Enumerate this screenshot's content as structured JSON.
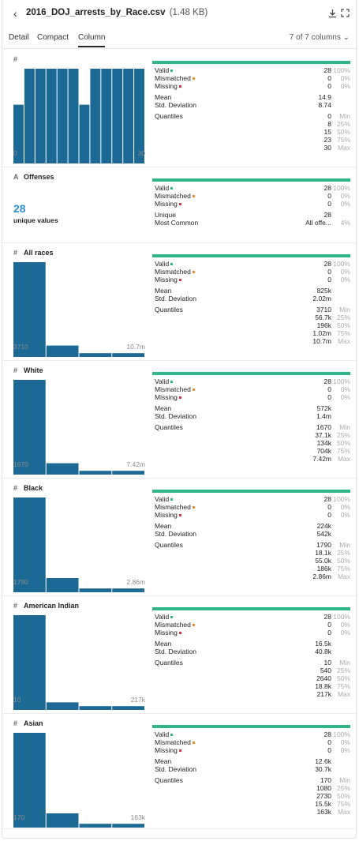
{
  "header": {
    "back_icon": "chevron-left-icon",
    "file_name": "2016_DOJ_arrests_by_Race.csv",
    "file_size": "(1.48 KB)",
    "download_icon": "download-icon",
    "expand_icon": "expand-icon"
  },
  "tabs": [
    {
      "label": "Detail",
      "active": false
    },
    {
      "label": "Compact",
      "active": false
    },
    {
      "label": "Column",
      "active": true
    }
  ],
  "column_count": "7 of 7 columns ⌄",
  "colors": {
    "valid": "#2fb588",
    "mismatched": "#ef8a2f",
    "missing": "#d63a48",
    "histogram": "#1d6996",
    "unique": "#2b8fd6"
  },
  "columns": [
    {
      "name": "",
      "type_icon": "#",
      "kind": "numeric",
      "histogram": [
        0.62,
        1,
        1,
        1,
        1,
        1,
        0.62,
        1,
        1,
        1,
        1,
        1
      ],
      "axis_min": "0",
      "axis_max": "30",
      "summary": [
        {
          "label": "Valid",
          "value": "28",
          "pct": "100%"
        },
        {
          "label": "Mismatched",
          "value": "0",
          "pct": "0%"
        },
        {
          "label": "Missing",
          "value": "0",
          "pct": "0%"
        }
      ],
      "mean_label": "Mean",
      "mean": "14.9",
      "std_label": "Std. Deviation",
      "std": "8.74",
      "quantiles_label": "Quantiles",
      "quantiles": [
        {
          "value": "0",
          "label": "Min"
        },
        {
          "value": "8",
          "label": "25%"
        },
        {
          "value": "15",
          "label": "50%"
        },
        {
          "value": "23",
          "label": "75%"
        },
        {
          "value": "30",
          "label": "Max"
        }
      ]
    },
    {
      "name": "Offenses",
      "type_icon": "A",
      "kind": "text",
      "unique_count": "28",
      "unique_label": "unique values",
      "summary": [
        {
          "label": "Valid",
          "value": "28",
          "pct": "100%"
        },
        {
          "label": "Mismatched",
          "value": "0",
          "pct": "0%"
        },
        {
          "label": "Missing",
          "value": "0",
          "pct": "0%"
        }
      ],
      "unique_row_label": "Unique",
      "unique_value": "28",
      "common_label": "Most Common",
      "common_value": "All offe...",
      "common_pct": "4%"
    },
    {
      "name": "All races",
      "type_icon": "#",
      "kind": "numeric",
      "histogram": [
        1,
        0.12,
        0.04,
        0.04
      ],
      "axis_min": "3710",
      "axis_max": "10.7m",
      "summary": [
        {
          "label": "Valid",
          "value": "28",
          "pct": "100%"
        },
        {
          "label": "Mismatched",
          "value": "0",
          "pct": "0%"
        },
        {
          "label": "Missing",
          "value": "0",
          "pct": "0%"
        }
      ],
      "mean_label": "Mean",
      "mean": "825k",
      "std_label": "Std. Deviation",
      "std": "2.02m",
      "quantiles_label": "Quantiles",
      "quantiles": [
        {
          "value": "3710",
          "label": "Min"
        },
        {
          "value": "56.7k",
          "label": "25%"
        },
        {
          "value": "196k",
          "label": "50%"
        },
        {
          "value": "1.02m",
          "label": "75%"
        },
        {
          "value": "10.7m",
          "label": "Max"
        }
      ]
    },
    {
      "name": "White",
      "type_icon": "#",
      "kind": "numeric",
      "histogram": [
        1,
        0.12,
        0.04,
        0.04
      ],
      "axis_min": "1670",
      "axis_max": "7.42m",
      "summary": [
        {
          "label": "Valid",
          "value": "28",
          "pct": "100%"
        },
        {
          "label": "Mismatched",
          "value": "0",
          "pct": "0%"
        },
        {
          "label": "Missing",
          "value": "0",
          "pct": "0%"
        }
      ],
      "mean_label": "Mean",
      "mean": "572k",
      "std_label": "Std. Deviation",
      "std": "1.4m",
      "quantiles_label": "Quantiles",
      "quantiles": [
        {
          "value": "1670",
          "label": "Min"
        },
        {
          "value": "37.1k",
          "label": "25%"
        },
        {
          "value": "134k",
          "label": "50%"
        },
        {
          "value": "704k",
          "label": "75%"
        },
        {
          "value": "7.42m",
          "label": "Max"
        }
      ]
    },
    {
      "name": "Black",
      "type_icon": "#",
      "kind": "numeric",
      "histogram": [
        1,
        0.15,
        0.04,
        0.04
      ],
      "axis_min": "1790",
      "axis_max": "2.86m",
      "summary": [
        {
          "label": "Valid",
          "value": "28",
          "pct": "100%"
        },
        {
          "label": "Mismatched",
          "value": "0",
          "pct": "0%"
        },
        {
          "label": "Missing",
          "value": "0",
          "pct": "0%"
        }
      ],
      "mean_label": "Mean",
      "mean": "224k",
      "std_label": "Std. Deviation",
      "std": "542k",
      "quantiles_label": "Quantiles",
      "quantiles": [
        {
          "value": "1790",
          "label": "Min"
        },
        {
          "value": "18.1k",
          "label": "25%"
        },
        {
          "value": "55.0k",
          "label": "50%"
        },
        {
          "value": "186k",
          "label": "75%"
        },
        {
          "value": "2.86m",
          "label": "Max"
        }
      ]
    },
    {
      "name": "American Indian",
      "type_icon": "#",
      "kind": "numeric",
      "histogram": [
        1,
        0.08,
        0.04,
        0.04
      ],
      "axis_min": "10",
      "axis_max": "217k",
      "summary": [
        {
          "label": "Valid",
          "value": "28",
          "pct": "100%"
        },
        {
          "label": "Mismatched",
          "value": "0",
          "pct": "0%"
        },
        {
          "label": "Missing",
          "value": "0",
          "pct": "0%"
        }
      ],
      "mean_label": "Mean",
      "mean": "16.5k",
      "std_label": "Std. Deviation",
      "std": "40.8k",
      "quantiles_label": "Quantiles",
      "quantiles": [
        {
          "value": "10",
          "label": "Min"
        },
        {
          "value": "540",
          "label": "25%"
        },
        {
          "value": "2640",
          "label": "50%"
        },
        {
          "value": "18.8k",
          "label": "75%"
        },
        {
          "value": "217k",
          "label": "Max"
        }
      ]
    },
    {
      "name": "Asian",
      "type_icon": "#",
      "kind": "numeric",
      "histogram": [
        1,
        0.15,
        0.04,
        0.04
      ],
      "axis_min": "170",
      "axis_max": "163k",
      "summary": [
        {
          "label": "Valid",
          "value": "28",
          "pct": "100%"
        },
        {
          "label": "Mismatched",
          "value": "0",
          "pct": "0%"
        },
        {
          "label": "Missing",
          "value": "0",
          "pct": "0%"
        }
      ],
      "mean_label": "Mean",
      "mean": "12.6k",
      "std_label": "Std. Deviation",
      "std": "30.7k",
      "quantiles_label": "Quantiles",
      "quantiles": [
        {
          "value": "170",
          "label": "Min"
        },
        {
          "value": "1080",
          "label": "25%"
        },
        {
          "value": "2730",
          "label": "50%"
        },
        {
          "value": "15.5k",
          "label": "75%"
        },
        {
          "value": "163k",
          "label": "Max"
        }
      ]
    }
  ]
}
